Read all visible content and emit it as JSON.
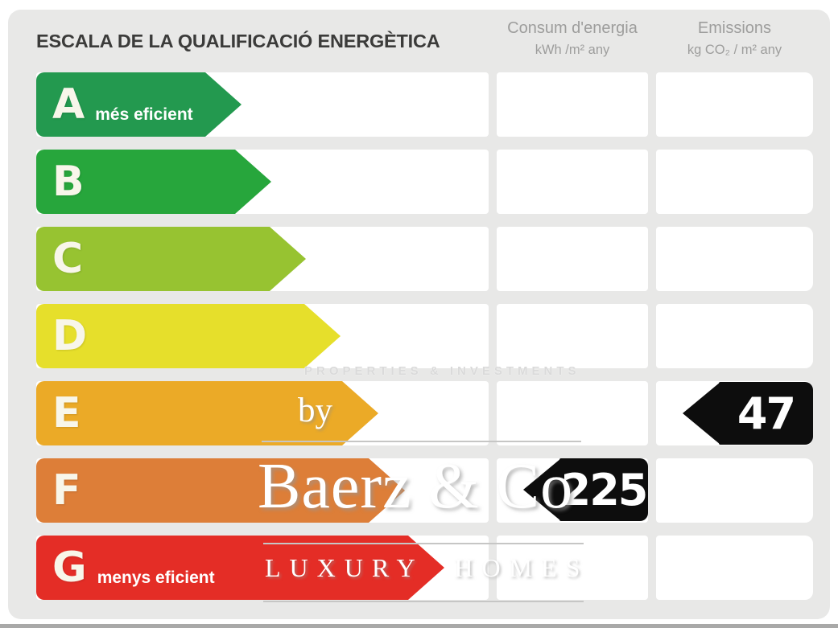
{
  "title": "ESCALA DE LA QUALIFICACIÓ ENERGÈTICA",
  "columns": {
    "consum": {
      "title": "Consum d'energia",
      "unit": "kWh /m² any"
    },
    "emissions": {
      "title": "Emissions",
      "unit": "kg CO₂ / m² any"
    }
  },
  "scale": {
    "rows": [
      {
        "letter": "A",
        "label": "més eficient",
        "color": "#23994f",
        "arrow_width": 255
      },
      {
        "letter": "B",
        "label": "",
        "color": "#27a63c",
        "arrow_width": 292
      },
      {
        "letter": "C",
        "label": "",
        "color": "#97c331",
        "arrow_width": 335
      },
      {
        "letter": "D",
        "label": "",
        "color": "#e6df2b",
        "arrow_width": 378
      },
      {
        "letter": "E",
        "label": "",
        "color": "#ebaa27",
        "arrow_width": 425
      },
      {
        "letter": "F",
        "label": "",
        "color": "#dd7e38",
        "arrow_width": 458
      },
      {
        "letter": "G",
        "label": "menys eficient",
        "color": "#e42d26",
        "arrow_width": 507
      }
    ]
  },
  "ratings": {
    "consum": {
      "value": "225",
      "row_letter": "F",
      "badge_color": "#0d0d0d"
    },
    "emissions": {
      "value": "47",
      "row_letter": "E",
      "badge_color": "#0d0d0d"
    }
  },
  "watermarks": {
    "partner_tagline": "PROPERTIES & INVESTMENTS",
    "by_label": "by",
    "brand": "Baerz & Co",
    "brand_tagline": "LUXURY HOMES"
  },
  "colors": {
    "card_bg": "#e8e8e7",
    "cell_bg": "#ffffff",
    "title_text": "#3b3b3a",
    "header_text": "#9d9d9c",
    "badge_bg": "#0d0d0d",
    "bottom_band": "#a9a9a8"
  },
  "chart_data": {
    "type": "bar",
    "title": "ESCALA DE LA QUALIFICACIÓ ENERGÈTICA",
    "categories": [
      "A",
      "B",
      "C",
      "D",
      "E",
      "F",
      "G"
    ],
    "series": [
      {
        "name": "scale-arrow-relative-length-px",
        "values": [
          255,
          292,
          335,
          378,
          425,
          458,
          507
        ]
      }
    ],
    "bar_colors": [
      "#23994f",
      "#27a63c",
      "#97c331",
      "#e6df2b",
      "#ebaa27",
      "#dd7e38",
      "#e42d26"
    ],
    "annotations": [
      {
        "column": "Consum d'energia",
        "unit": "kWh/m² any",
        "value": 225,
        "rating": "F"
      },
      {
        "column": "Emissions",
        "unit": "kg CO₂/m² any",
        "value": 47,
        "rating": "E"
      }
    ],
    "category_labels": {
      "A": "més eficient",
      "G": "menys eficient"
    },
    "legend": "none",
    "grid": "off"
  }
}
